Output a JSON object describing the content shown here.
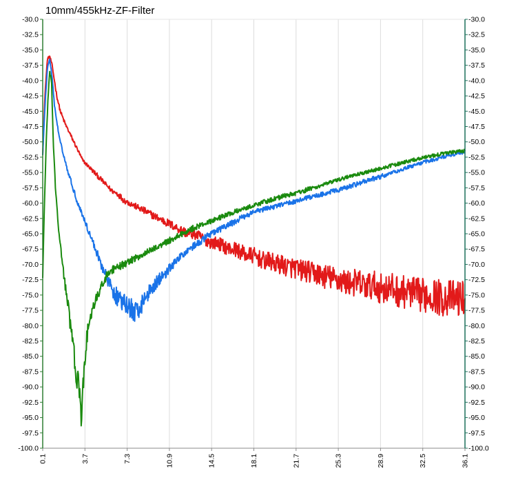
{
  "chart_data": {
    "type": "line",
    "title": "10mm/455kHz-ZF-Filter",
    "xlabel": "",
    "ylabel": "",
    "xlim": [
      0.1,
      36.1
    ],
    "ylim": [
      -100.0,
      -30.0
    ],
    "grid": true,
    "x_ticks": [
      "0.1",
      "3.7",
      "7.3",
      "10.9",
      "14.5",
      "18.1",
      "21.7",
      "25.3",
      "28.9",
      "32.5",
      "36.1"
    ],
    "y_ticks": [
      "-30.0",
      "-32.5",
      "-35.0",
      "-37.5",
      "-40.0",
      "-42.5",
      "-45.0",
      "-47.5",
      "-50.0",
      "-52.5",
      "-55.0",
      "-57.5",
      "-60.0",
      "-62.5",
      "-65.0",
      "-67.5",
      "-70.0",
      "-72.5",
      "-75.0",
      "-77.5",
      "-80.0",
      "-82.5",
      "-85.0",
      "-87.5",
      "-90.0",
      "-92.5",
      "-95.0",
      "-97.5",
      "-100.0"
    ],
    "y_ticks_right": [
      "-30.0",
      "-32.5",
      "-35.0",
      "-37.5",
      "-40.0",
      "-42.5",
      "-45.0",
      "-47.5",
      "-50.0",
      "-52.5",
      "-55.0",
      "-57.5",
      "-60.0",
      "-62.5",
      "-65.0",
      "-67.5",
      "-70.0",
      "-72.5",
      "-75.0",
      "-77.5",
      "-80.0",
      "-82.5",
      "-85.0",
      "-87.5",
      "-90.0",
      "-92.5",
      "-95.0",
      "-97.5",
      "-100.0"
    ],
    "series": [
      {
        "color": "#e21a1a",
        "x": [
          0.1,
          0.3,
          0.5,
          0.7,
          0.9,
          1.1,
          1.3,
          1.6,
          2.0,
          2.5,
          3.0,
          3.5,
          4.0,
          4.5,
          5.0,
          5.5,
          6.0,
          6.5,
          7.0,
          7.5,
          8.0,
          8.5,
          9.0,
          9.5,
          10.0,
          10.5,
          11.0,
          11.5,
          12.0,
          12.5,
          13.0,
          13.5,
          14.0,
          14.5,
          15.0,
          15.5,
          16.0,
          16.5,
          17.0,
          17.5,
          18.0,
          18.5,
          19.0,
          19.5,
          20.0,
          20.5,
          21.0,
          21.5,
          22.0,
          22.5,
          23.0,
          23.5,
          24.0,
          24.5,
          25.0,
          25.5,
          26.0,
          26.5,
          27.0,
          27.5,
          28.0,
          28.5,
          29.0,
          29.5,
          30.0,
          30.5,
          31.0,
          31.5,
          32.0,
          32.5,
          33.0,
          33.5,
          34.0,
          34.5,
          35.0,
          35.5,
          36.1
        ],
        "y": [
          -52.0,
          -42.0,
          -36.5,
          -36.0,
          -37.5,
          -40.0,
          -42.5,
          -45.0,
          -47.0,
          -49.0,
          -51.0,
          -53.0,
          -54.0,
          -55.0,
          -56.0,
          -57.0,
          -58.0,
          -58.5,
          -59.5,
          -60.0,
          -60.5,
          -61.0,
          -61.5,
          -62.0,
          -62.5,
          -63.0,
          -63.5,
          -64.0,
          -64.5,
          -65.0,
          -65.0,
          -65.5,
          -66.0,
          -66.5,
          -66.5,
          -67.0,
          -67.5,
          -67.5,
          -68.0,
          -68.5,
          -68.5,
          -69.0,
          -69.5,
          -69.5,
          -70.0,
          -70.0,
          -70.5,
          -70.5,
          -71.0,
          -71.0,
          -71.5,
          -71.5,
          -72.0,
          -72.0,
          -72.5,
          -72.5,
          -73.0,
          -73.0,
          -73.0,
          -73.5,
          -73.5,
          -73.5,
          -74.0,
          -74.0,
          -74.0,
          -74.5,
          -74.5,
          -74.5,
          -75.0,
          -75.0,
          -75.0,
          -75.0,
          -75.5,
          -75.5,
          -75.5,
          -75.5,
          -75.5
        ],
        "noise": [
          0.2,
          0.2,
          0.2,
          0.2,
          0.2,
          0.2,
          0.3,
          0.3,
          0.3,
          0.3,
          0.3,
          0.3,
          0.3,
          0.4,
          0.4,
          0.4,
          0.4,
          0.5,
          0.5,
          0.5,
          0.5,
          0.6,
          0.6,
          0.6,
          0.6,
          0.7,
          0.7,
          0.7,
          0.8,
          0.8,
          0.9,
          0.9,
          1.0,
          1.0,
          1.1,
          1.1,
          1.2,
          1.2,
          1.3,
          1.3,
          1.4,
          1.4,
          1.5,
          1.5,
          1.6,
          1.6,
          1.7,
          1.7,
          1.8,
          1.8,
          1.9,
          1.9,
          2.0,
          2.0,
          2.1,
          2.1,
          2.2,
          2.2,
          2.3,
          2.3,
          2.4,
          2.4,
          2.5,
          2.5,
          2.6,
          2.6,
          2.7,
          2.7,
          2.8,
          2.8,
          2.9,
          2.9,
          3.0,
          3.0,
          3.0,
          3.0,
          3.0
        ]
      },
      {
        "color": "#1a73e8",
        "x": [
          0.1,
          0.3,
          0.5,
          0.7,
          0.9,
          1.1,
          1.4,
          1.8,
          2.2,
          2.6,
          3.0,
          3.5,
          4.0,
          4.5,
          5.0,
          5.5,
          6.0,
          6.5,
          7.0,
          7.5,
          8.0,
          8.5,
          9.0,
          9.5,
          10.0,
          10.5,
          11.0,
          11.5,
          12.0,
          12.5,
          13.0,
          13.5,
          14.0,
          14.5,
          15.0,
          15.5,
          16.0,
          16.5,
          17.0,
          18.0,
          19.0,
          20.0,
          21.0,
          22.0,
          23.0,
          24.0,
          25.0,
          26.0,
          27.0,
          28.0,
          29.0,
          30.0,
          31.0,
          32.0,
          33.0,
          34.0,
          35.0,
          36.1
        ],
        "y": [
          -52.0,
          -44.0,
          -38.0,
          -36.5,
          -39.5,
          -44.0,
          -48.0,
          -51.5,
          -54.5,
          -57.0,
          -59.5,
          -62.0,
          -64.5,
          -67.0,
          -69.5,
          -72.0,
          -74.0,
          -75.5,
          -76.5,
          -77.0,
          -78.0,
          -76.5,
          -75.0,
          -73.5,
          -72.5,
          -71.5,
          -70.5,
          -69.5,
          -68.5,
          -67.5,
          -67.0,
          -66.5,
          -65.5,
          -65.0,
          -64.5,
          -64.0,
          -63.5,
          -63.0,
          -62.5,
          -61.5,
          -61.0,
          -60.5,
          -60.0,
          -59.5,
          -59.0,
          -58.5,
          -58.0,
          -57.5,
          -56.8,
          -56.2,
          -55.6,
          -55.0,
          -54.3,
          -53.7,
          -53.1,
          -52.6,
          -52.1,
          -51.6
        ],
        "noise": [
          0.2,
          0.2,
          0.2,
          0.2,
          0.2,
          0.2,
          0.3,
          0.3,
          0.3,
          0.4,
          0.4,
          0.5,
          0.5,
          0.6,
          0.8,
          1.0,
          1.3,
          1.5,
          1.7,
          1.8,
          1.8,
          1.6,
          1.4,
          1.2,
          1.0,
          0.9,
          0.8,
          0.7,
          0.7,
          0.6,
          0.6,
          0.6,
          0.5,
          0.5,
          0.5,
          0.5,
          0.5,
          0.5,
          0.5,
          0.4,
          0.4,
          0.4,
          0.4,
          0.4,
          0.4,
          0.4,
          0.4,
          0.4,
          0.4,
          0.4,
          0.4,
          0.3,
          0.3,
          0.3,
          0.3,
          0.3,
          0.3,
          0.3
        ]
      },
      {
        "color": "#1a8a0e",
        "x": [
          0.1,
          0.25,
          0.4,
          0.55,
          0.7,
          0.85,
          1.0,
          1.2,
          1.4,
          1.6,
          1.8,
          2.0,
          2.2,
          2.4,
          2.6,
          2.8,
          3.0,
          3.2,
          3.4,
          3.6,
          3.8,
          4.0,
          4.3,
          4.6,
          5.0,
          5.5,
          6.0,
          6.5,
          7.0,
          7.5,
          8.0,
          8.5,
          9.0,
          9.5,
          10.0,
          10.5,
          11.0,
          11.5,
          12.0,
          12.5,
          13.0,
          14.0,
          15.0,
          16.0,
          17.0,
          18.0,
          19.0,
          20.0,
          21.0,
          22.0,
          23.0,
          24.0,
          25.0,
          26.0,
          27.0,
          28.0,
          29.0,
          30.0,
          31.0,
          32.0,
          33.0,
          34.0,
          35.0,
          36.1
        ],
        "y": [
          -72.0,
          -60.0,
          -50.0,
          -43.0,
          -38.5,
          -40.0,
          -50.0,
          -58.0,
          -63.0,
          -67.0,
          -70.0,
          -73.0,
          -76.0,
          -79.0,
          -82.0,
          -85.0,
          -88.0,
          -91.0,
          -95.5,
          -88.0,
          -83.0,
          -80.0,
          -78.0,
          -76.0,
          -74.0,
          -72.0,
          -71.0,
          -70.5,
          -70.0,
          -69.5,
          -69.0,
          -68.5,
          -68.0,
          -67.5,
          -67.0,
          -66.5,
          -66.0,
          -65.5,
          -65.0,
          -64.5,
          -64.0,
          -63.3,
          -62.5,
          -61.8,
          -61.0,
          -60.4,
          -59.8,
          -59.2,
          -58.7,
          -58.2,
          -57.6,
          -57.0,
          -56.4,
          -55.8,
          -55.3,
          -54.8,
          -54.3,
          -53.8,
          -53.3,
          -52.8,
          -52.4,
          -52.0,
          -51.7,
          -51.5
        ],
        "noise": [
          0.3,
          0.3,
          0.3,
          0.3,
          0.3,
          0.3,
          0.3,
          0.4,
          0.5,
          0.6,
          0.8,
          1.0,
          1.2,
          1.5,
          1.8,
          2.2,
          2.5,
          2.5,
          1.5,
          2.0,
          1.5,
          1.2,
          1.0,
          0.9,
          0.8,
          0.7,
          0.7,
          0.6,
          0.6,
          0.6,
          0.6,
          0.5,
          0.5,
          0.5,
          0.5,
          0.5,
          0.5,
          0.5,
          0.5,
          0.5,
          0.5,
          0.4,
          0.4,
          0.4,
          0.4,
          0.4,
          0.4,
          0.4,
          0.4,
          0.4,
          0.4,
          0.3,
          0.3,
          0.3,
          0.3,
          0.3,
          0.3,
          0.3,
          0.3,
          0.3,
          0.3,
          0.3,
          0.3,
          0.3
        ]
      }
    ]
  }
}
